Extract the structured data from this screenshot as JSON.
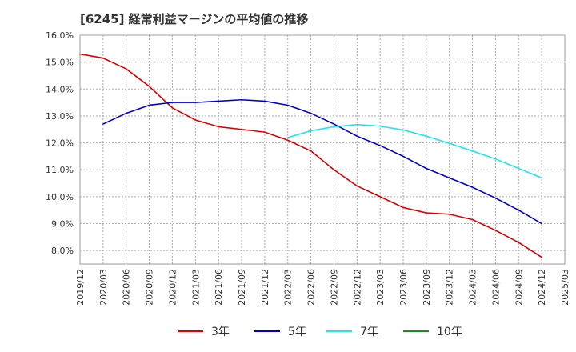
{
  "chart_data": {
    "type": "line",
    "title": "[6245]  経常利益マージンの平均値の推移",
    "xlabel": "",
    "ylabel": "",
    "ylim": [
      7.5,
      16.0
    ],
    "y_ticks": [
      8.0,
      9.0,
      10.0,
      11.0,
      12.0,
      13.0,
      14.0,
      15.0,
      16.0
    ],
    "y_tick_format": "percent_1dp",
    "x_ticks": [
      "2019/12",
      "2020/03",
      "2020/06",
      "2020/09",
      "2020/12",
      "2021/03",
      "2021/06",
      "2021/09",
      "2021/12",
      "2022/03",
      "2022/06",
      "2022/09",
      "2022/12",
      "2023/03",
      "2023/06",
      "2023/09",
      "2023/12",
      "2024/03",
      "2024/06",
      "2024/09",
      "2024/12",
      "2025/03"
    ],
    "grid": true,
    "legend_position": "bottom",
    "series": [
      {
        "name": "3年",
        "color": "#dd0000",
        "x": [
          "2019/12",
          "2020/03",
          "2020/06",
          "2020/09",
          "2020/12",
          "2021/03",
          "2021/06",
          "2021/09",
          "2021/12",
          "2022/03",
          "2022/06",
          "2022/09",
          "2022/12",
          "2023/03",
          "2023/06",
          "2023/09",
          "2023/12",
          "2024/03",
          "2024/06",
          "2024/09",
          "2024/12"
        ],
        "values": [
          15.3,
          15.15,
          14.75,
          14.1,
          13.3,
          12.85,
          12.6,
          12.5,
          12.4,
          12.1,
          11.7,
          11.0,
          10.4,
          10.0,
          9.6,
          9.4,
          9.35,
          9.15,
          8.75,
          8.3,
          7.75
        ]
      },
      {
        "name": "5年",
        "color": "#0000cc",
        "x": [
          "2020/03",
          "2020/06",
          "2020/09",
          "2020/12",
          "2021/03",
          "2021/06",
          "2021/09",
          "2021/12",
          "2022/03",
          "2022/06",
          "2022/09",
          "2022/12",
          "2023/03",
          "2023/06",
          "2023/09",
          "2023/12",
          "2024/03",
          "2024/06",
          "2024/09",
          "2024/12"
        ],
        "values": [
          12.7,
          13.1,
          13.4,
          13.5,
          13.5,
          13.55,
          13.6,
          13.55,
          13.4,
          13.1,
          12.7,
          12.25,
          11.9,
          11.5,
          11.05,
          10.7,
          10.35,
          9.95,
          9.5,
          9.0
        ]
      },
      {
        "name": "7年",
        "color": "#22e5f0",
        "x": [
          "2022/03",
          "2022/06",
          "2022/09",
          "2022/12",
          "2023/03",
          "2023/06",
          "2023/09",
          "2023/12",
          "2024/03",
          "2024/06",
          "2024/09",
          "2024/12"
        ],
        "values": [
          12.2,
          12.45,
          12.6,
          12.68,
          12.62,
          12.48,
          12.25,
          11.98,
          11.7,
          11.4,
          11.05,
          10.7
        ]
      },
      {
        "name": "10年",
        "color": "#228822",
        "x": [],
        "values": []
      }
    ]
  }
}
